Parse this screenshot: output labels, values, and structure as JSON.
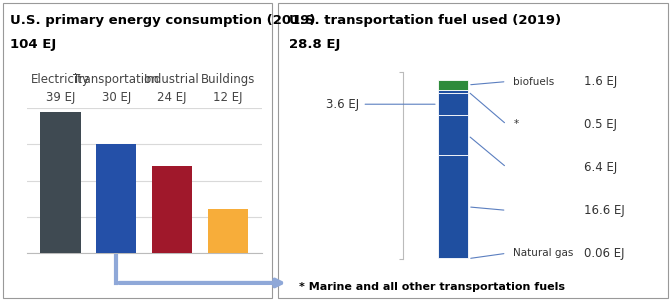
{
  "chart_data": [
    {
      "type": "bar",
      "title": "U.S. primary energy consumption (2019)",
      "subtitle": "104 EJ",
      "categories": [
        "Electricity",
        "Transportation",
        "Industrial",
        "Buildings"
      ],
      "values": [
        39,
        30,
        24,
        12
      ],
      "value_labels": [
        "39 EJ",
        "30 EJ",
        "24 EJ",
        "12 EJ"
      ],
      "colors": [
        "#3f4a52",
        "#2450a8",
        "#a0182b",
        "#f7ad3a"
      ],
      "ylim": [
        0,
        40
      ],
      "yticks": [
        0,
        10,
        20,
        30,
        40
      ],
      "grid": true,
      "tick_labels": false,
      "data_labels": true
    },
    {
      "type": "bar",
      "title": "U.S. transportation fuel used (2019)",
      "subtitle": "28.8 EJ",
      "note": "* Marine and all other transportation fuels",
      "stacked": true,
      "categories": [
        null
      ],
      "series": [
        {
          "name": "Natural gas",
          "values": [
            0.06
          ],
          "value_labels": [
            "0.06 EJ"
          ],
          "color": "#1f4fa0"
        },
        {
          "name": null,
          "values": [
            16.6
          ],
          "value_labels": [
            "16.6 EJ"
          ],
          "color": "#1f4fa0"
        },
        {
          "name": null,
          "values": [
            6.4
          ],
          "value_labels": [
            "6.4 EJ"
          ],
          "color": "#1f4fa0"
        },
        {
          "name": null,
          "values": [
            3.6
          ],
          "value_labels": [
            "3.6 EJ"
          ],
          "color": "#1f4fa0"
        },
        {
          "name": "*",
          "values": [
            0.5
          ],
          "value_labels": [
            "0.5 EJ"
          ],
          "color": "#1f4fa0"
        },
        {
          "name": "biofuels",
          "values": [
            1.6
          ],
          "value_labels": [
            "1.6 EJ"
          ],
          "color": "#2e8b3b"
        }
      ],
      "ylim": [
        0,
        30
      ],
      "yticks": [
        0,
        30
      ],
      "grid": false,
      "tick_labels": false,
      "data_labels": true
    }
  ]
}
